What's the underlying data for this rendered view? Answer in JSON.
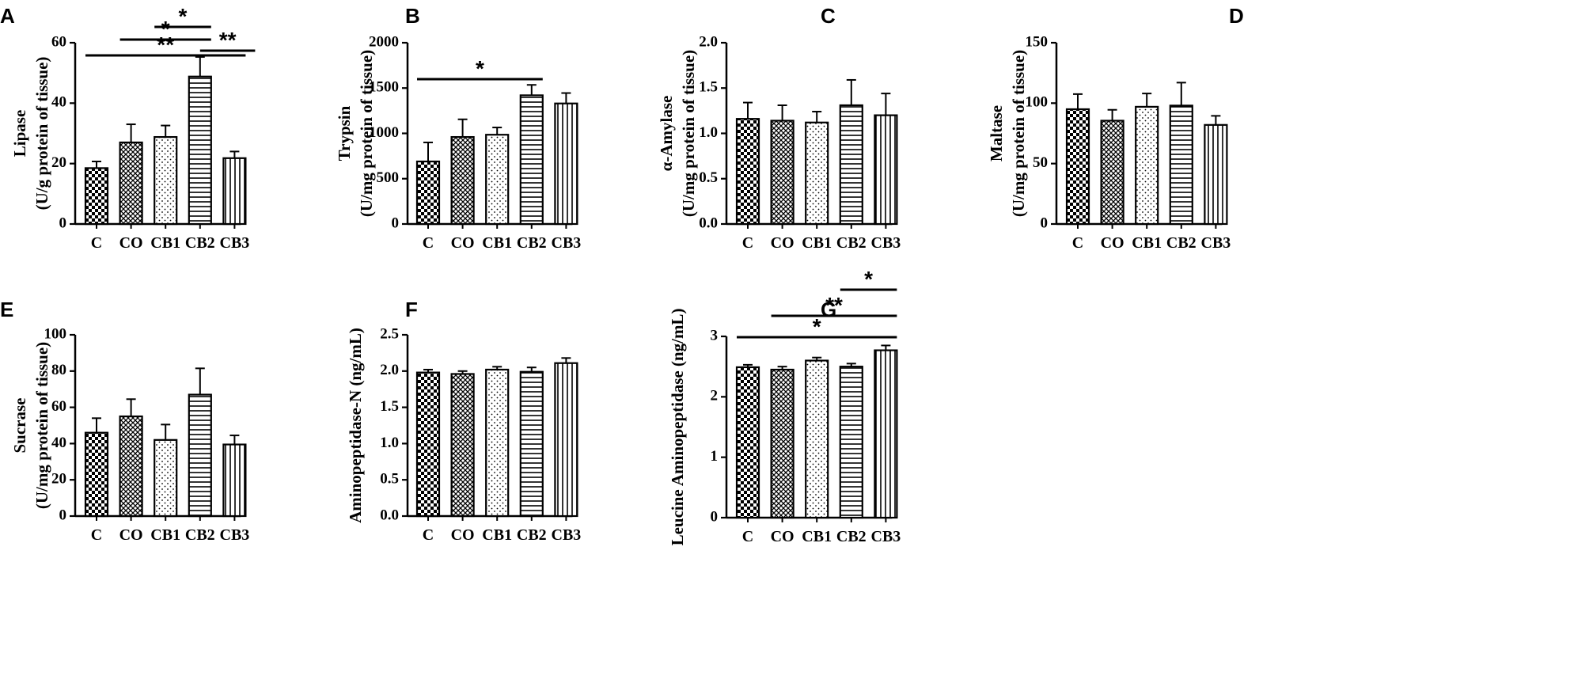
{
  "chart_data": [
    {
      "panel": "A",
      "type": "bar",
      "categories": [
        "C",
        "CO",
        "CB1",
        "CB2",
        "CB3"
      ],
      "values": [
        18.5,
        27,
        28.8,
        48.8,
        21.8
      ],
      "errors": [
        2.2,
        6,
        3.8,
        6.5,
        2.2
      ],
      "ylabel": [
        "Lipase",
        "(U/g protein of tissue)"
      ],
      "ylim": [
        0,
        60
      ],
      "yticks": [
        0,
        20,
        40,
        60
      ],
      "significance": [
        {
          "from": 0,
          "to": 4,
          "label": "**"
        },
        {
          "from": 1,
          "to": 3,
          "label": "*"
        },
        {
          "from": 2,
          "to": 3,
          "label": "*"
        },
        {
          "from": 3,
          "to": 4,
          "label": "**"
        }
      ]
    },
    {
      "panel": "B",
      "type": "bar",
      "categories": [
        "C",
        "CO",
        "CB1",
        "CB2",
        "CB3"
      ],
      "values": [
        690,
        960,
        985,
        1420,
        1330
      ],
      "errors": [
        210,
        195,
        80,
        115,
        115
      ],
      "ylabel": [
        "Trypsin",
        "(U/mg protein of tissue)"
      ],
      "ylim": [
        0,
        2000
      ],
      "yticks": [
        0,
        500,
        1000,
        1500,
        2000
      ],
      "significance": [
        {
          "from": 0,
          "to": 3,
          "label": "*"
        }
      ]
    },
    {
      "panel": "C",
      "type": "bar",
      "categories": [
        "C",
        "CO",
        "CB1",
        "CB2",
        "CB3"
      ],
      "values": [
        1.16,
        1.14,
        1.12,
        1.31,
        1.2
      ],
      "errors": [
        0.18,
        0.17,
        0.12,
        0.28,
        0.24
      ],
      "ylabel": [
        "α-Amylase",
        "(U/mg protein of tissue)"
      ],
      "ylim": [
        0,
        2.0
      ],
      "yticks": [
        "0.0",
        "0.5",
        "1.0",
        "1.5",
        "2.0"
      ],
      "significance": []
    },
    {
      "panel": "D",
      "type": "bar",
      "categories": [
        "C",
        "CO",
        "CB1",
        "CB2",
        "CB3"
      ],
      "values": [
        95,
        85.5,
        97,
        98,
        82
      ],
      "errors": [
        12.5,
        9,
        11,
        19,
        7.5
      ],
      "ylabel": [
        "Maltase",
        "(U/mg protein of tissue)"
      ],
      "ylim": [
        0,
        150
      ],
      "yticks": [
        0,
        50,
        100,
        150
      ],
      "significance": []
    },
    {
      "panel": "E",
      "type": "bar",
      "categories": [
        "C",
        "CO",
        "CB1",
        "CB2",
        "CB3"
      ],
      "values": [
        46,
        55,
        42,
        67,
        39.5
      ],
      "errors": [
        8,
        9.5,
        8.5,
        14.5,
        5
      ],
      "ylabel": [
        "Sucrase",
        "(U/mg protein of tissue)"
      ],
      "ylim": [
        0,
        100
      ],
      "yticks": [
        0,
        20,
        40,
        60,
        80,
        100
      ],
      "significance": []
    },
    {
      "panel": "F",
      "type": "bar",
      "categories": [
        "C",
        "CO",
        "CB1",
        "CB2",
        "CB3"
      ],
      "values": [
        1.98,
        1.96,
        2.02,
        1.99,
        2.11
      ],
      "errors": [
        0.04,
        0.04,
        0.04,
        0.06,
        0.07
      ],
      "ylabel": [
        "Aminopeptidase-N  (ng/mL)"
      ],
      "ylim": [
        0,
        2.5
      ],
      "yticks": [
        "0.0",
        "0.5",
        "1.0",
        "1.5",
        "2.0",
        "2.5"
      ],
      "significance": []
    },
    {
      "panel": "G",
      "type": "bar",
      "categories": [
        "C",
        "CO",
        "CB1",
        "CB2",
        "CB3"
      ],
      "values": [
        2.49,
        2.45,
        2.6,
        2.5,
        2.77
      ],
      "errors": [
        0.04,
        0.05,
        0.05,
        0.05,
        0.08
      ],
      "ylabel": [
        "Leucine Aminopeptidase (ng/mL)"
      ],
      "ylim": [
        0,
        3
      ],
      "yticks": [
        0,
        1,
        2,
        3
      ],
      "significance": [
        {
          "from": 0,
          "to": 4,
          "label": "*"
        },
        {
          "from": 1,
          "to": 4,
          "label": "**"
        },
        {
          "from": 3,
          "to": 4,
          "label": "*"
        }
      ]
    }
  ]
}
